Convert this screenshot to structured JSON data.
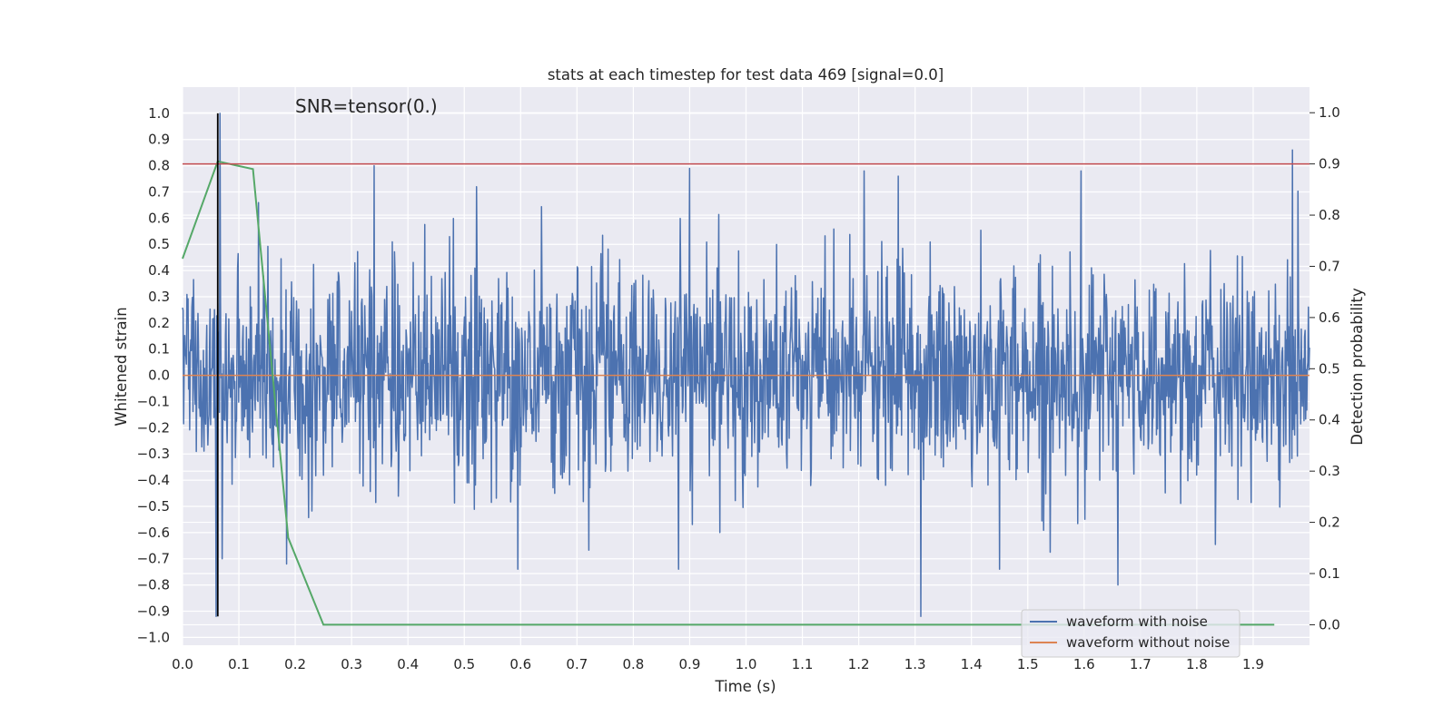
{
  "chart_data": {
    "type": "line",
    "title": "stats at each timestep for test data 469 [signal=0.0]",
    "xlabel": "Time (s)",
    "ylabel": "Whitened strain",
    "ylabel_right": "Detection probability",
    "annotation": "SNR=tensor(0.)",
    "xlim": [
      0.0,
      2.0
    ],
    "ylim": [
      -1.03,
      1.1
    ],
    "ylim_right": [
      -0.04,
      1.05
    ],
    "x_ticks": [
      "0.0",
      "0.1",
      "0.2",
      "0.3",
      "0.4",
      "0.5",
      "0.6",
      "0.7",
      "0.8",
      "0.9",
      "1.0",
      "1.1",
      "1.2",
      "1.3",
      "1.4",
      "1.5",
      "1.6",
      "1.7",
      "1.8",
      "1.9"
    ],
    "y_ticks": [
      "1.0",
      "0.9",
      "0.8",
      "0.7",
      "0.6",
      "0.5",
      "0.4",
      "0.3",
      "0.2",
      "0.1",
      "0.0",
      "−0.1",
      "−0.2",
      "−0.3",
      "−0.4",
      "−0.5",
      "−0.6",
      "−0.7",
      "−0.8",
      "−0.9",
      "−1.0"
    ],
    "y_ticks_right": [
      "1.0",
      "0.9",
      "0.8",
      "0.7",
      "0.6",
      "0.5",
      "0.4",
      "0.3",
      "0.2",
      "0.1",
      "0.0"
    ],
    "grid": true,
    "legend_position": "bottom-right",
    "colors": {
      "noise": "#4c72b0",
      "clean": "#dd8452",
      "probability": "#55a868",
      "threshold": "#c44e52",
      "marker": "#000000",
      "background": "#eaeaf2"
    },
    "series": [
      {
        "name": "waveform with noise",
        "axis": "left",
        "noise_amplitude": 0.2,
        "x_range": [
          0.0,
          2.0
        ],
        "peaks": [
          {
            "x": 0.066,
            "y": 1.0
          },
          {
            "x": 0.06,
            "y": -0.92
          },
          {
            "x": 0.34,
            "y": 0.8
          },
          {
            "x": 0.9,
            "y": 0.79
          },
          {
            "x": 1.21,
            "y": 0.78
          },
          {
            "x": 1.31,
            "y": -0.92
          },
          {
            "x": 1.97,
            "y": 0.86
          },
          {
            "x": 0.595,
            "y": -0.74
          },
          {
            "x": 0.88,
            "y": -0.74
          },
          {
            "x": 1.66,
            "y": -0.8
          },
          {
            "x": 0.07,
            "y": -0.7
          },
          {
            "x": 0.185,
            "y": -0.72
          },
          {
            "x": 1.45,
            "y": -0.74
          },
          {
            "x": 1.595,
            "y": 0.78
          },
          {
            "x": 1.27,
            "y": 0.76
          }
        ]
      },
      {
        "name": "waveform without noise",
        "axis": "left",
        "x": [
          0.0,
          2.0
        ],
        "y": [
          0.0,
          0.0
        ]
      },
      {
        "axis": "right",
        "x": [
          0.0,
          0.0625,
          0.125,
          0.1875,
          0.25,
          0.3125,
          1.9375
        ],
        "y": [
          0.715,
          0.905,
          0.89,
          0.17,
          0.0,
          0.0,
          0.0
        ]
      }
    ],
    "threshold_right": 0.9,
    "marker_x": 0.0625,
    "marker_y_range": [
      -0.92,
      1.0
    ]
  }
}
